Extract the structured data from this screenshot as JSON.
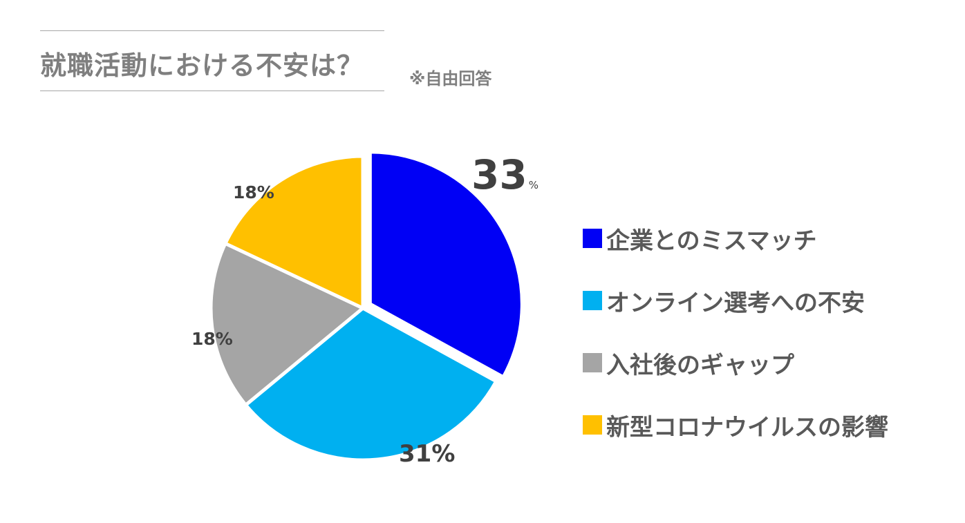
{
  "header": {
    "title": "就職活動における不安は？",
    "subtitle": "※自由回答"
  },
  "chart_data": {
    "type": "pie",
    "title": "就職活動における不安は？",
    "subtitle": "※自由回答",
    "legend_position": "right",
    "slices": [
      {
        "label": "企業とのミスマッチ",
        "value": 33,
        "value_label": "33",
        "unit_label": "%",
        "color": "#0000f5",
        "exploded": true
      },
      {
        "label": "オンライン選考への不安",
        "value": 31,
        "value_label": "31%",
        "color": "#00b0f0",
        "exploded": false
      },
      {
        "label": "入社後のギャップ",
        "value": 18,
        "value_label": "18%",
        "color": "#a5a5a5",
        "exploded": false
      },
      {
        "label": "新型コロナウイルスの影響",
        "value": 18,
        "value_label": "18%",
        "color": "#ffc000",
        "exploded": false
      }
    ]
  }
}
